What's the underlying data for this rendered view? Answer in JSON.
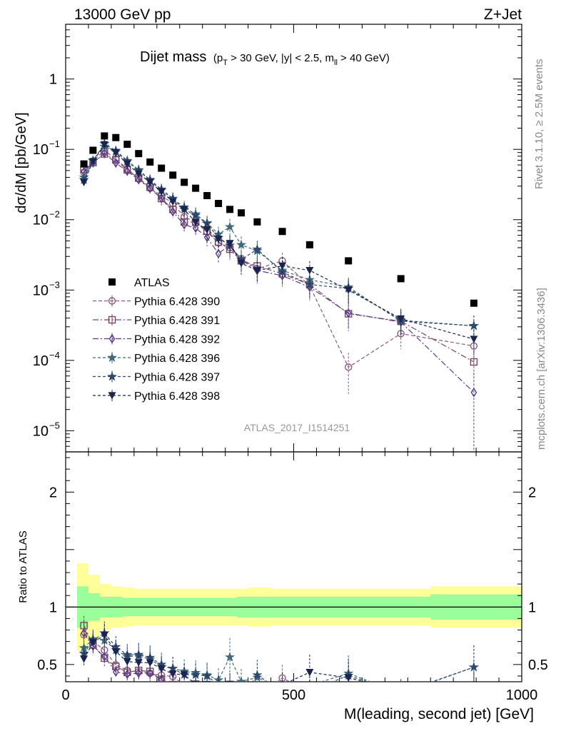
{
  "header": {
    "energy": "13000 GeV pp",
    "process": "Z+Jet"
  },
  "side_labels": {
    "rivet": "Rivet 3.1.10, ≥ 2.5M events",
    "mcplots": "mcplots.cern.ch [arXiv:1306.3436]"
  },
  "chart_data": {
    "type": "scatter",
    "title": "Dijet mass",
    "subtitle_parts": {
      "open": "(p",
      "sub1": "T",
      "mid": " > 30 GeV, |y| < 2.5, m",
      "sub2": "ll",
      "close": " > 40 GeV)"
    },
    "analysis_id": "ATLAS_2017_I1514251",
    "xlabel": "M(leading, second jet) [GeV]",
    "ylabel_top": "dσ/dM [pb/GeV]",
    "ylabel_bottom": "Ratio to ATLAS",
    "xlim": [
      0,
      1000
    ],
    "ylim_top": [
      5e-06,
      6
    ],
    "ylim_bottom": [
      0.35,
      2.35
    ],
    "log_y_top": true,
    "x_ticks": [
      "0",
      "500",
      "1000"
    ],
    "ratio_ticks": [
      "0.5",
      "1",
      "2"
    ],
    "legend_position": "middle-left",
    "colors": {
      "data": "#000000",
      "band_inner": "#9aff9a",
      "band_outer": "#ffff99"
    },
    "x": [
      40,
      60,
      85,
      110,
      135,
      160,
      185,
      210,
      235,
      260,
      285,
      310,
      335,
      360,
      385,
      420,
      475,
      535,
      620,
      735,
      895
    ],
    "bin_edges": [
      25,
      50,
      75,
      100,
      125,
      150,
      175,
      200,
      225,
      250,
      275,
      300,
      325,
      350,
      375,
      400,
      450,
      500,
      575,
      800,
      1000
    ],
    "atlas": [
      0.062,
      0.097,
      0.155,
      0.147,
      0.118,
      0.087,
      0.066,
      0.054,
      0.043,
      0.034,
      0.028,
      0.022,
      0.017,
      0.014,
      0.0125,
      0.0093,
      0.0068,
      0.0044,
      0.0026,
      0.00145,
      0.00065
    ],
    "band_inner": [
      0.18,
      0.12,
      0.09,
      0.09,
      0.08,
      0.08,
      0.08,
      0.08,
      0.08,
      0.08,
      0.08,
      0.08,
      0.08,
      0.08,
      0.09,
      0.09,
      0.09,
      0.09,
      0.09,
      0.11,
      0.13
    ],
    "band_outer": [
      0.38,
      0.28,
      0.2,
      0.18,
      0.17,
      0.16,
      0.16,
      0.16,
      0.16,
      0.16,
      0.16,
      0.16,
      0.16,
      0.16,
      0.16,
      0.17,
      0.16,
      0.16,
      0.16,
      0.18,
      0.2
    ],
    "series": [
      {
        "name": "Pythia 6.428 390",
        "color": "#8a5a80",
        "marker": "circle",
        "dash": "5,3",
        "values": [
          0.047,
          0.068,
          0.097,
          0.073,
          0.053,
          0.038,
          0.028,
          0.022,
          0.017,
          0.011,
          0.0092,
          0.0067,
          0.0047,
          0.004,
          0.0028,
          0.002,
          0.0026,
          0.00115,
          8e-05,
          0.00024,
          0.00016
        ],
        "err": [
          0.15,
          0.12,
          0.1,
          0.1,
          0.12,
          0.13,
          0.14,
          0.16,
          0.18,
          0.2,
          0.22,
          0.25,
          0.28,
          0.3,
          0.33,
          0.35,
          0.3,
          0.35,
          0.6,
          0.4,
          0.45
        ]
      },
      {
        "name": "Pythia 6.428 391",
        "color": "#7a4565",
        "marker": "square",
        "dash": "8,3,2,3",
        "values": [
          0.052,
          0.065,
          0.086,
          0.071,
          0.051,
          0.039,
          0.029,
          0.02,
          0.014,
          0.0093,
          0.0092,
          0.0069,
          0.0048,
          0.0038,
          0.0026,
          0.0022,
          0.0017,
          0.0012,
          0.00046,
          0.00036,
          9.5e-05
        ]
      },
      {
        "name": "Pythia 6.428 392",
        "color": "#5a3a85",
        "marker": "diamond",
        "dash": "8,3,2,3",
        "values": [
          0.048,
          0.064,
          0.088,
          0.064,
          0.049,
          0.037,
          0.028,
          0.02,
          0.013,
          0.0085,
          0.0076,
          0.0056,
          0.0033,
          0.0044,
          0.0027,
          0.0019,
          0.0016,
          0.0011,
          0.00047,
          0.00035,
          3.5e-05
        ],
        "err": [
          0.15,
          0.12,
          0.1,
          0.1,
          0.12,
          0.13,
          0.14,
          0.16,
          0.18,
          0.2,
          0.22,
          0.25,
          0.28,
          0.3,
          0.33,
          0.35,
          0.3,
          0.35,
          0.45,
          0.4,
          0.9
        ]
      },
      {
        "name": "Pythia 6.428 396",
        "color": "#3f6a78",
        "marker": "star",
        "dash": "4,3",
        "values": [
          0.04,
          0.07,
          0.11,
          0.092,
          0.067,
          0.05,
          0.036,
          0.026,
          0.02,
          0.015,
          0.012,
          0.009,
          0.0062,
          0.0079,
          0.0044,
          0.0036,
          0.0019,
          0.0014,
          0.0011,
          0.00036,
          0.00031
        ]
      },
      {
        "name": "Pythia 6.428 397",
        "color": "#2e4a6c",
        "marker": "star",
        "dash": "4,3",
        "values": [
          0.037,
          0.069,
          0.12,
          0.096,
          0.069,
          0.051,
          0.037,
          0.027,
          0.02,
          0.014,
          0.0115,
          0.0088,
          0.0055,
          0.0043,
          0.0027,
          0.0038,
          0.0018,
          0.0012,
          0.00105,
          0.00037,
          0.00031
        ]
      },
      {
        "name": "Pythia 6.428 398",
        "color": "#1a2450",
        "marker": "triangle-down",
        "dash": "4,3",
        "values": [
          0.034,
          0.067,
          0.117,
          0.09,
          0.062,
          0.045,
          0.034,
          0.025,
          0.018,
          0.014,
          0.0092,
          0.0072,
          0.0053,
          0.0046,
          0.0024,
          0.0019,
          0.0022,
          0.0019,
          0.001,
          0.00039,
          0.0002
        ]
      }
    ]
  }
}
